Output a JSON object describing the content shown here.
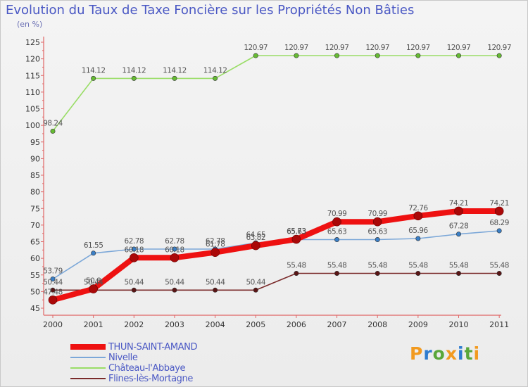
{
  "title": "Evolution du Taux de Taxe Foncière sur les Propriétés Non Bâties",
  "subtitle": "(en %)",
  "logo": {
    "letters": [
      "P",
      "r",
      "o",
      "x",
      "i",
      "t",
      "i"
    ],
    "colors": [
      "#f29a1f",
      "#2f7ccf",
      "#5aa73a",
      "#f29a1f",
      "#2f7ccf",
      "#5aa73a",
      "#f29a1f"
    ]
  },
  "legend": [
    {
      "label": "THUN-SAINT-AMAND",
      "color": "#ee1111",
      "width": 8
    },
    {
      "label": "Nivelle",
      "color": "#7ba7d8",
      "width": 2
    },
    {
      "label": "Château-l'Abbaye",
      "color": "#99dd66",
      "width": 2
    },
    {
      "label": "Flines-lès-Mortagne",
      "color": "#7a2b2b",
      "width": 2
    }
  ],
  "chart_data": {
    "type": "line",
    "title": "Evolution du Taux de Taxe Foncière sur les Propriétés Non Bâties",
    "ylabel": "(en %)",
    "xlabel": "",
    "ylim": [
      45,
      125
    ],
    "yticks": [
      "45",
      "50",
      "55",
      "60",
      "65",
      "70",
      "75",
      "80",
      "85",
      "90",
      "95",
      "100",
      "105",
      "110",
      "115",
      "120",
      "125"
    ],
    "categories": [
      "2000",
      "2001",
      "2002",
      "2003",
      "2004",
      "2005",
      "2006",
      "2007",
      "2008",
      "2009",
      "2010",
      "2011"
    ],
    "grid": false,
    "series": [
      {
        "name": "THUN-SAINT-AMAND",
        "color": "#ee1111",
        "point_color": "#aa0808",
        "width": 8,
        "radius": 6,
        "values": [
          47.48,
          50.8,
          60.18,
          60.18,
          61.78,
          63.82,
          65.73,
          70.99,
          70.99,
          72.76,
          74.21,
          74.21
        ],
        "labels": [
          "47.48",
          "50.8",
          "60.18",
          "60.18",
          "61.78",
          "63.82",
          "65.73",
          "70.99",
          "70.99",
          "72.76",
          "74.21",
          "74.21"
        ]
      },
      {
        "name": "Nivelle",
        "color": "#7ba7d8",
        "point_color": "#3a7fc6",
        "width": 1.6,
        "radius": 3.2,
        "values": [
          53.79,
          61.55,
          62.78,
          62.78,
          62.78,
          64.65,
          65.63,
          65.63,
          65.63,
          65.96,
          67.28,
          68.29
        ],
        "labels": [
          "53.79",
          "61.55",
          "62.78",
          "62.78",
          "62.78",
          "64.65",
          "65.63",
          "65.63",
          "65.63",
          "65.96",
          "67.28",
          "68.29"
        ]
      },
      {
        "name": "Château-l'Abbaye",
        "color": "#99dd66",
        "point_color": "#66bb33",
        "width": 1.6,
        "radius": 3.2,
        "values": [
          98.24,
          114.12,
          114.12,
          114.12,
          114.12,
          120.97,
          120.97,
          120.97,
          120.97,
          120.97,
          120.97,
          120.97
        ],
        "labels": [
          "98.24",
          "114.12",
          "114.12",
          "114.12",
          "114.12",
          "120.97",
          "120.97",
          "120.97",
          "120.97",
          "120.97",
          "120.97",
          "120.97"
        ]
      },
      {
        "name": "Flines-lès-Mortagne",
        "color": "#7a2b2b",
        "point_color": "#5a1515",
        "width": 1.6,
        "radius": 3.2,
        "values": [
          50.44,
          50.44,
          50.44,
          50.44,
          50.44,
          50.44,
          55.48,
          55.48,
          55.48,
          55.48,
          55.48,
          55.48
        ],
        "labels": [
          "50.44",
          "50.44",
          "50.44",
          "50.44",
          "50.44",
          "50.44",
          "55.48",
          "55.48",
          "55.48",
          "55.48",
          "55.48",
          "55.48"
        ]
      }
    ]
  }
}
